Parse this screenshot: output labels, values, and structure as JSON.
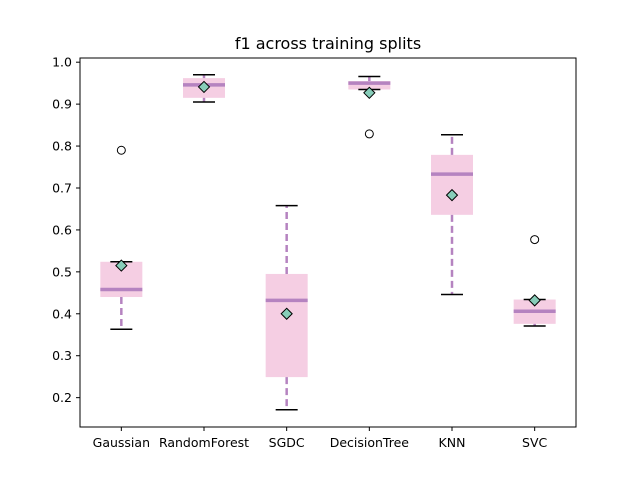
{
  "chart_data": {
    "type": "box",
    "title": "f1 across training splits",
    "xlabel": "",
    "ylabel": "",
    "ylim": [
      0.13,
      1.01
    ],
    "yticks": [
      0.2,
      0.3,
      0.4,
      0.5,
      0.6,
      0.7,
      0.8,
      0.9,
      1.0
    ],
    "ytick_labels": [
      "0.2",
      "0.3",
      "0.4",
      "0.5",
      "0.6",
      "0.7",
      "0.8",
      "0.9",
      "1.0"
    ],
    "grid": false,
    "legend": false,
    "colors": {
      "box_fill": "#f5cee3",
      "median": "#b583c0",
      "whisker": "#b583c0",
      "cap": "#000000",
      "mean_marker": "#87cdb9",
      "flier_edge": "#000000"
    },
    "categories": [
      "Gaussian",
      "RandomForest",
      "SGDC",
      "DecisionTree",
      "KNN",
      "SVC"
    ],
    "boxes": [
      {
        "label": "Gaussian",
        "whislo": 0.363,
        "q1": 0.44,
        "med": 0.458,
        "q3": 0.524,
        "whishi": 0.524,
        "mean": 0.515,
        "fliers": [
          0.79
        ]
      },
      {
        "label": "RandomForest",
        "whislo": 0.905,
        "q1": 0.915,
        "med": 0.946,
        "q3": 0.962,
        "whishi": 0.97,
        "mean": 0.941,
        "fliers": []
      },
      {
        "label": "SGDC",
        "whislo": 0.171,
        "q1": 0.249,
        "med": 0.432,
        "q3": 0.495,
        "whishi": 0.658,
        "mean": 0.4,
        "fliers": []
      },
      {
        "label": "DecisionTree",
        "whislo": 0.935,
        "q1": 0.935,
        "med": 0.95,
        "q3": 0.955,
        "whishi": 0.966,
        "mean": 0.927,
        "fliers": [
          0.829
        ]
      },
      {
        "label": "KNN",
        "whislo": 0.446,
        "q1": 0.636,
        "med": 0.733,
        "q3": 0.779,
        "whishi": 0.827,
        "mean": 0.683,
        "fliers": []
      },
      {
        "label": "SVC",
        "whislo": 0.371,
        "q1": 0.376,
        "med": 0.406,
        "q3": 0.434,
        "whishi": 0.434,
        "mean": 0.432,
        "fliers": [
          0.577
        ]
      }
    ]
  }
}
